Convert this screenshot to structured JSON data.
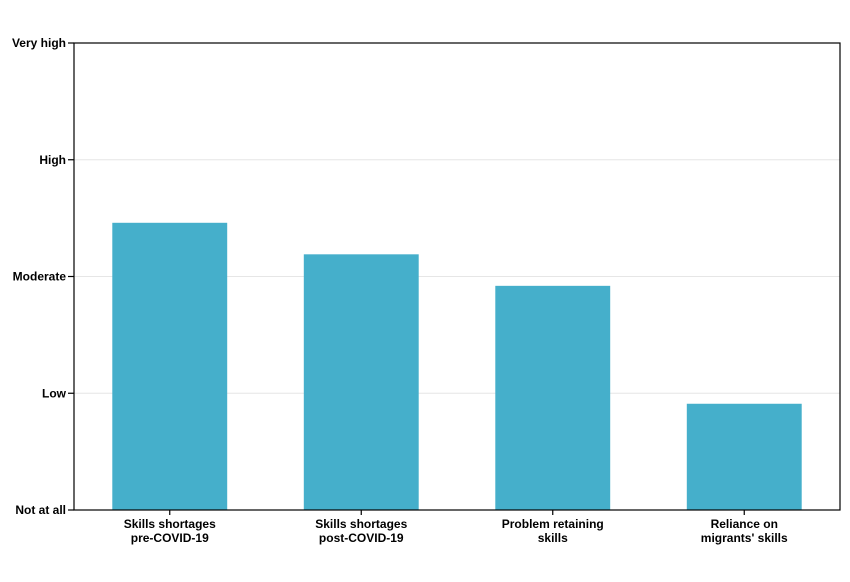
{
  "chart_data": {
    "type": "bar",
    "categories": [
      [
        "Skills shortages",
        "pre-COVID-19"
      ],
      [
        "Skills shortages",
        "post-COVID-19"
      ],
      [
        "Problem retaining",
        "skills"
      ],
      [
        "Reliance on",
        "migrants' skills"
      ]
    ],
    "values": [
      2.46,
      2.19,
      1.92,
      0.91
    ],
    "ylim": [
      0,
      4
    ],
    "y_tick_values": [
      0,
      1,
      2,
      3,
      4
    ],
    "y_tick_labels": [
      "Not at all",
      "Low",
      "Moderate",
      "High",
      "Very high"
    ],
    "title": "",
    "xlabel": "",
    "ylabel": "",
    "grid": "horizontal",
    "bar_color": "#45AFCB",
    "grid_color": "#E6E6E6",
    "axis_color": "#000000"
  }
}
